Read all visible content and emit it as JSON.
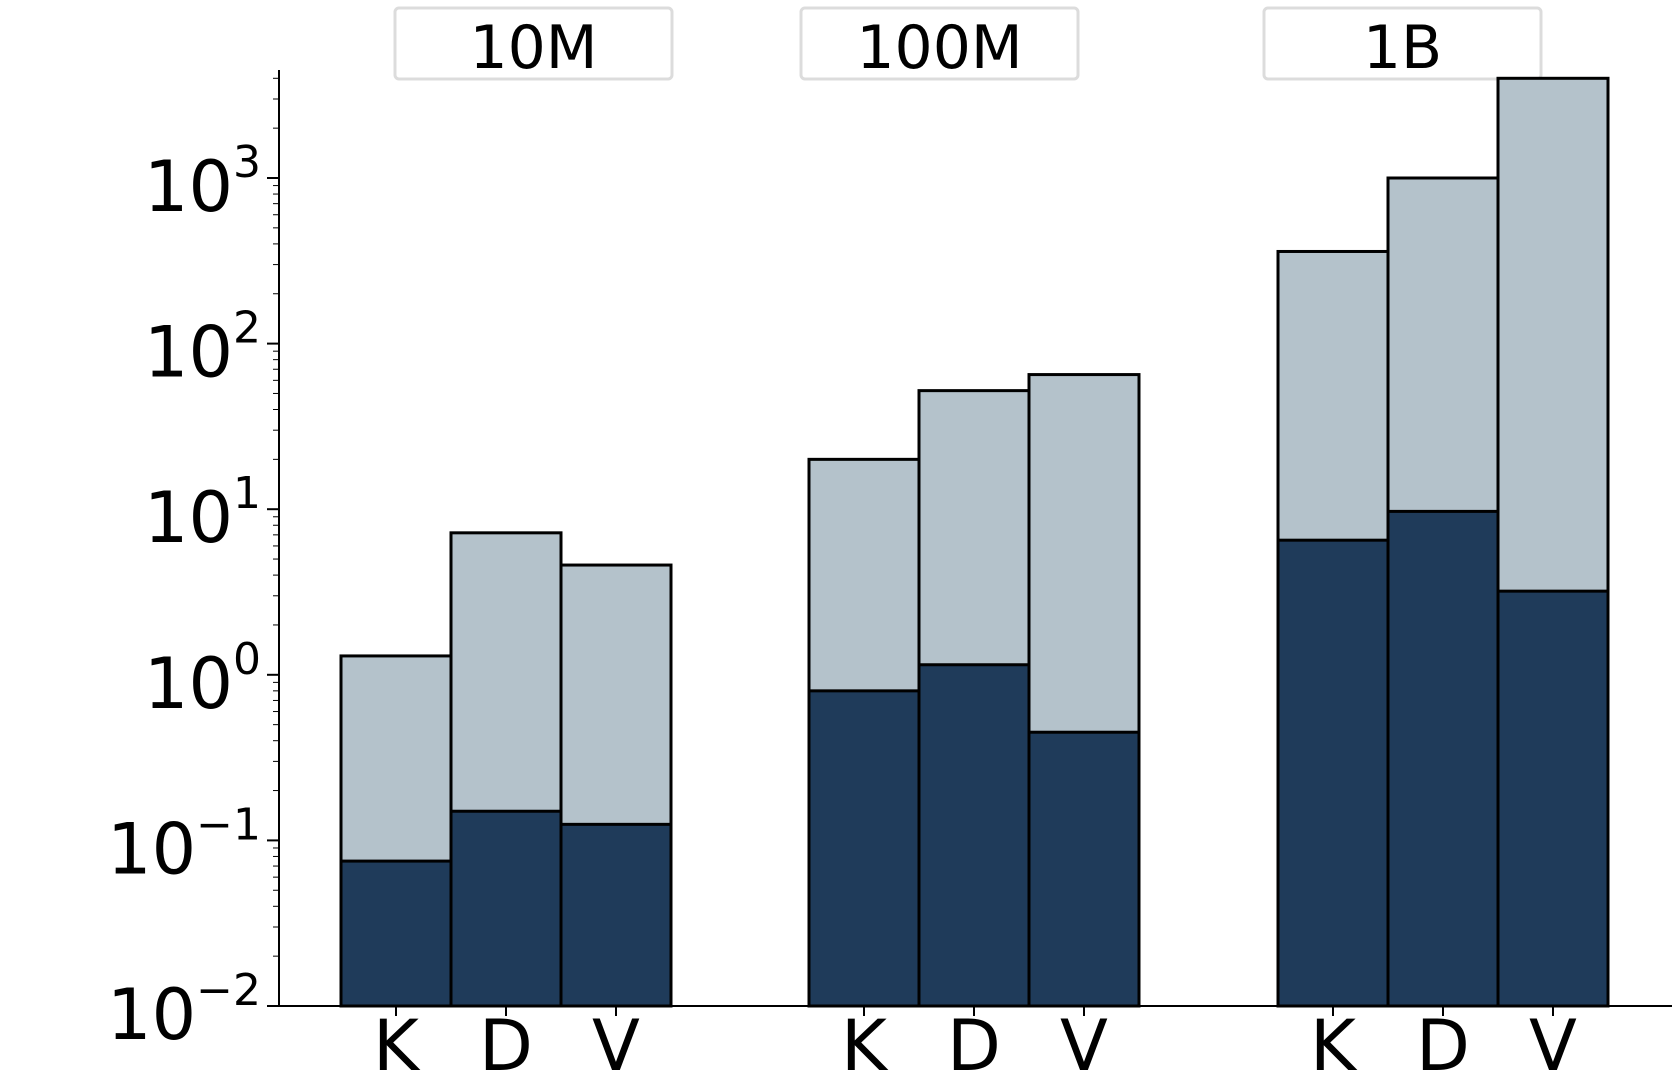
{
  "chart_data": {
    "type": "bar",
    "stacking": "overlaid",
    "yscale": "log",
    "ylim": [
      0.01,
      5000
    ],
    "grid": false,
    "legend": "none",
    "yticks": [
      {
        "base": "10",
        "exp": "−2"
      },
      {
        "base": "10",
        "exp": "−1"
      },
      {
        "base": "10",
        "exp": "0"
      },
      {
        "base": "10",
        "exp": "1"
      },
      {
        "base": "10",
        "exp": "2"
      },
      {
        "base": "10",
        "exp": "3"
      }
    ],
    "groups": [
      {
        "title": "10M",
        "categories": [
          "K",
          "D",
          "V"
        ],
        "lower": [
          0.075,
          0.15,
          0.125
        ],
        "upper": [
          1.3,
          7.2,
          4.6
        ]
      },
      {
        "title": "100M",
        "categories": [
          "K",
          "D",
          "V"
        ],
        "lower": [
          0.8,
          1.15,
          0.45
        ],
        "upper": [
          20,
          52,
          65
        ]
      },
      {
        "title": "1B",
        "categories": [
          "K",
          "D",
          "V"
        ],
        "lower": [
          6.5,
          9.7,
          3.2
        ],
        "upper": [
          360,
          1000,
          4000
        ]
      }
    ],
    "colors": {
      "lower": "#1f3b5a",
      "upper": "#b4c2cb",
      "edge": "#000000"
    }
  }
}
